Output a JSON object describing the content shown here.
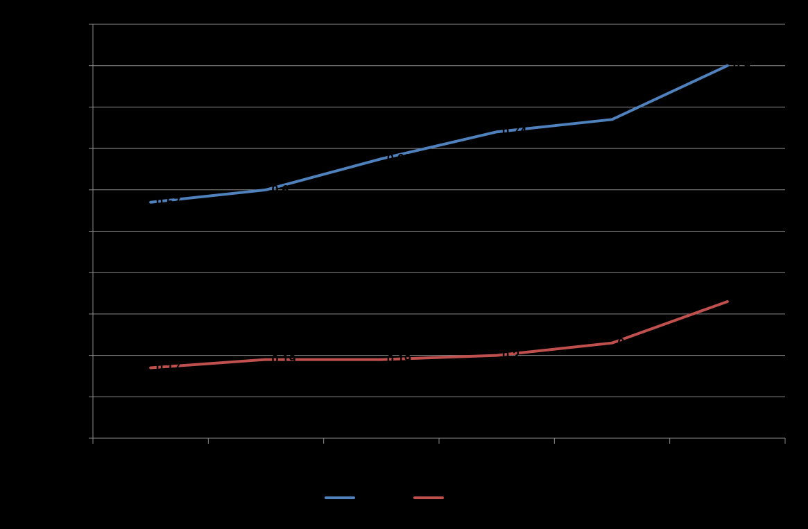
{
  "chart_data": {
    "type": "line",
    "title": "",
    "xlabel": "",
    "ylabel": "",
    "categories": [
      "",
      "",
      "",
      "",
      "",
      ""
    ],
    "ylim": [
      0,
      1
    ],
    "y_gridlines": 10,
    "grid": true,
    "legend_position": "bottom",
    "series": [
      {
        "name": "",
        "color": "#4f81bd",
        "values": [
          0.57,
          0.6,
          0.675,
          0.74,
          0.77,
          0.9
        ],
        "labels": [
          "0.57",
          "0.6",
          "0.68",
          "0.74",
          "",
          "0.9"
        ]
      },
      {
        "name": "",
        "color": "#c0504d",
        "values": [
          0.17,
          0.19,
          0.19,
          0.2,
          0.23,
          0.33
        ],
        "labels": [
          "0.17",
          "0.19",
          "0.19",
          "0.2",
          "0.23",
          ""
        ]
      }
    ]
  }
}
